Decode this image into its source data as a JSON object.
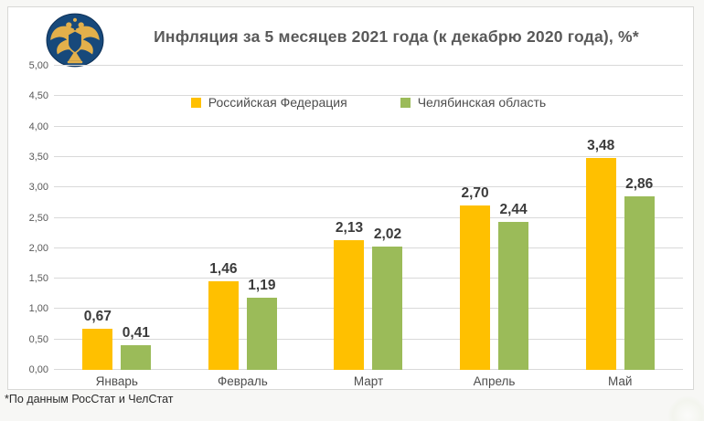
{
  "page": {
    "title": "Инфляция за 5 месяцев 2021 года (к декабрю 2020 года), %*",
    "footnote": "*По данным РосСтат и ЧелСтат",
    "logo_name": "bank-of-russia-emblem"
  },
  "chart_data": {
    "type": "bar",
    "title": "Инфляция за 5 месяцев 2021 года (к декабрю 2020 года), %*",
    "categories": [
      "Январь",
      "Февраль",
      "Март",
      "Апрель",
      "Май"
    ],
    "series": [
      {
        "name": "Российская Федерация",
        "color": "#FFC000",
        "values": [
          0.67,
          1.46,
          2.13,
          2.7,
          3.48
        ]
      },
      {
        "name": "Челябинская область",
        "color": "#9BBB59",
        "values": [
          0.41,
          1.19,
          2.02,
          2.44,
          2.86
        ]
      }
    ],
    "xlabel": "",
    "ylabel": "",
    "ylim": [
      0,
      5
    ],
    "ytick_step": 0.5,
    "yticks": [
      "0,00",
      "0,50",
      "1,00",
      "1,50",
      "2,00",
      "2,50",
      "3,00",
      "3,50",
      "4,00",
      "4,50",
      "5,00"
    ],
    "decimal_separator": ",",
    "grid": true,
    "legend_position": "top-center",
    "value_labels": true,
    "footnote": "*По данным РосСтат и ЧелСтат"
  },
  "colors": {
    "title_text": "#595959",
    "axis_text": "#595959",
    "value_label_text": "#3b3b3b",
    "gridline": "#d9d9d9",
    "panel_background": "#ffffff",
    "panel_border": "#d8d8d6",
    "page_background": "#f7f7f5",
    "series_rf": "#FFC000",
    "series_chel": "#9BBB59",
    "logo_navy": "#17497B",
    "logo_gold": "#E3B04B"
  }
}
